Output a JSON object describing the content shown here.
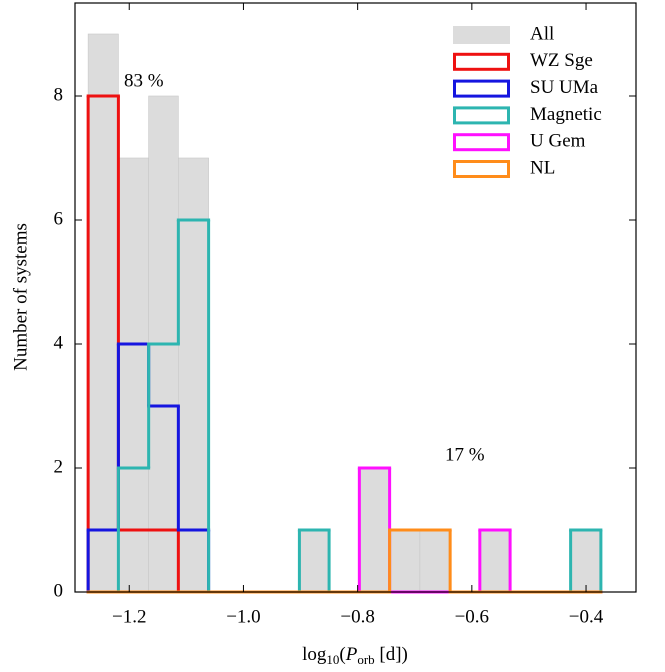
{
  "chart_data": {
    "type": "histogram",
    "x_label_parts": [
      "log",
      "10",
      "(",
      "P",
      "orb",
      " [d])"
    ],
    "y_label": "Number of systems",
    "annotations": [
      "83 %",
      "17 %"
    ],
    "bins": [
      -1.272,
      -1.219,
      -1.166,
      -1.114,
      -1.061,
      -1.008,
      -0.955,
      -0.902,
      -0.85,
      -0.797,
      -0.744,
      -0.691,
      -0.638,
      -0.586,
      -0.533,
      -0.48,
      -0.427,
      -0.374
    ],
    "series": [
      {
        "name": "All",
        "color": "#dcdcdc",
        "filled": true,
        "values": [
          9,
          7,
          8,
          7,
          0,
          0,
          0,
          1,
          0,
          2,
          1,
          1,
          0,
          1,
          0,
          0,
          1
        ]
      },
      {
        "name": "WZ Sge",
        "color": "#ee1111",
        "filled": false,
        "values": [
          8,
          1,
          1,
          0,
          0,
          0,
          0,
          0,
          0,
          0,
          0,
          0,
          0,
          0,
          0,
          0,
          0
        ]
      },
      {
        "name": "SU UMa",
        "color": "#1515e0",
        "filled": false,
        "values": [
          1,
          4,
          3,
          1,
          0,
          0,
          0,
          0,
          0,
          0,
          0,
          0,
          0,
          0,
          0,
          0,
          0
        ]
      },
      {
        "name": "Magnetic",
        "color": "#2db5b0",
        "filled": false,
        "values": [
          0,
          2,
          4,
          6,
          0,
          0,
          0,
          1,
          0,
          0,
          0,
          0,
          0,
          0,
          0,
          0,
          1
        ]
      },
      {
        "name": "U Gem",
        "color": "#ff10ff",
        "filled": false,
        "values": [
          0,
          0,
          0,
          0,
          0,
          0,
          0,
          0,
          0,
          2,
          0,
          0,
          0,
          1,
          0,
          0,
          0
        ]
      },
      {
        "name": "NL",
        "color": "#ff8c1a",
        "filled": false,
        "values": [
          0,
          0,
          0,
          0,
          0,
          0,
          0,
          0,
          0,
          0,
          1,
          1,
          0,
          0,
          0,
          0,
          0
        ]
      }
    ],
    "xlim": [
      -1.295,
      -0.3125
    ],
    "ylim": [
      0,
      9.5
    ],
    "xticks": [
      {
        "value": -1.2,
        "label": "−1.2"
      },
      {
        "value": -1.0,
        "label": "−1.0"
      },
      {
        "value": -0.8,
        "label": "−0.8"
      },
      {
        "value": -0.6,
        "label": "−0.6"
      },
      {
        "value": -0.4,
        "label": "−0.4"
      }
    ],
    "yticks": [
      0,
      2,
      4,
      6,
      8
    ],
    "legend": "upper right"
  }
}
